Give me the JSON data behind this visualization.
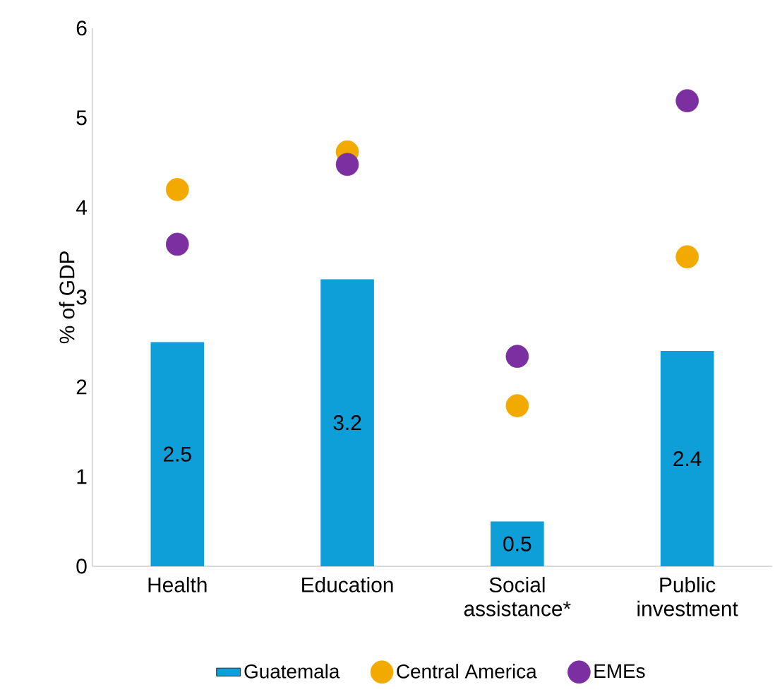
{
  "chart_data": {
    "type": "bar",
    "ylabel": "% of GDP",
    "categories": [
      "Health",
      "Education",
      "Social assistance*",
      "Public investment"
    ],
    "series": [
      {
        "name": "Guatemala",
        "color": "#0e9fd8",
        "values": [
          2.5,
          3.2,
          0.5,
          2.4
        ],
        "value_labels": [
          "2.5",
          "3.2",
          "0.5",
          "2.4"
        ]
      },
      {
        "name": "Central America",
        "type": "scatter",
        "color": "#f2a900",
        "x": [
          "Health",
          "Education",
          "Social assistance*",
          "Public investment"
        ],
        "values": [
          4.2,
          4.62,
          1.79,
          3.45
        ]
      },
      {
        "name": "EMEs",
        "type": "scatter",
        "color": "#7b2fa0",
        "x": [
          "Health",
          "Education",
          "Social assistance*",
          "Public investment"
        ],
        "values": [
          3.59,
          4.48,
          2.34,
          5.19
        ]
      }
    ],
    "ylim": [
      0,
      6
    ],
    "yticks": [
      0,
      1,
      2,
      3,
      4,
      5,
      6
    ],
    "legend": "bottom"
  }
}
